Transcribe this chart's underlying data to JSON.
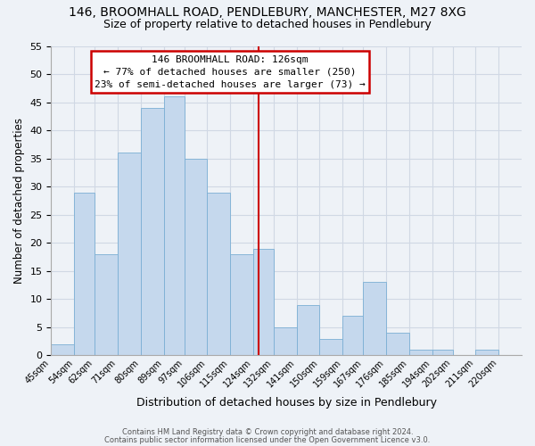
{
  "title": "146, BROOMHALL ROAD, PENDLEBURY, MANCHESTER, M27 8XG",
  "subtitle": "Size of property relative to detached houses in Pendlebury",
  "xlabel": "Distribution of detached houses by size in Pendlebury",
  "ylabel": "Number of detached properties",
  "bar_labels": [
    "45sqm",
    "54sqm",
    "62sqm",
    "71sqm",
    "80sqm",
    "89sqm",
    "97sqm",
    "106sqm",
    "115sqm",
    "124sqm",
    "132sqm",
    "141sqm",
    "150sqm",
    "159sqm",
    "167sqm",
    "176sqm",
    "185sqm",
    "194sqm",
    "202sqm",
    "211sqm",
    "220sqm"
  ],
  "bar_heights": [
    2,
    29,
    18,
    36,
    44,
    46,
    35,
    29,
    18,
    19,
    5,
    9,
    3,
    7,
    13,
    4,
    1,
    1,
    0,
    1,
    0
  ],
  "bin_edges": [
    45,
    54,
    62,
    71,
    80,
    89,
    97,
    106,
    115,
    124,
    132,
    141,
    150,
    159,
    167,
    176,
    185,
    194,
    202,
    211,
    220,
    229
  ],
  "bar_color": "#c5d8ed",
  "bar_edgecolor": "#7bafd4",
  "grid_color": "#d0d8e4",
  "property_line_x": 126,
  "property_line_color": "#cc0000",
  "annotation_title": "146 BROOMHALL ROAD: 126sqm",
  "annotation_line1": "← 77% of detached houses are smaller (250)",
  "annotation_line2": "23% of semi-detached houses are larger (73) →",
  "annotation_box_color": "#ffffff",
  "annotation_box_edgecolor": "#cc0000",
  "ylim": [
    0,
    55
  ],
  "yticks": [
    0,
    5,
    10,
    15,
    20,
    25,
    30,
    35,
    40,
    45,
    50,
    55
  ],
  "footnote1": "Contains HM Land Registry data © Crown copyright and database right 2024.",
  "footnote2": "Contains public sector information licensed under the Open Government Licence v3.0.",
  "bg_color": "#eef2f7"
}
